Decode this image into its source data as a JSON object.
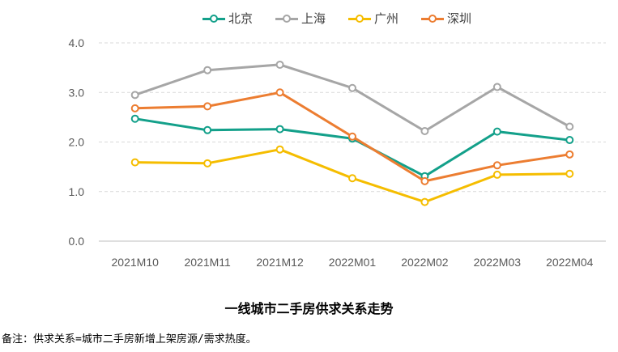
{
  "chart_data": {
    "type": "line",
    "title": "一线城市二手房供求关系走势",
    "categories": [
      "2021M10",
      "2021M11",
      "2021M12",
      "2022M01",
      "2022M02",
      "2022M03",
      "2022M04"
    ],
    "ylim": [
      0,
      4
    ],
    "yticks": [
      0,
      1,
      2,
      3,
      4
    ],
    "ytick_labels": [
      "0.0",
      "1.0",
      "2.0",
      "3.0",
      "4.0"
    ],
    "xlabel": "",
    "ylabel": "",
    "grid": true,
    "legend_position": "top-center",
    "series": [
      {
        "name": "北京",
        "color": "#13a08a",
        "values": [
          2.47,
          2.24,
          2.26,
          2.07,
          1.31,
          2.21,
          2.04
        ]
      },
      {
        "name": "上海",
        "color": "#a6a6a6",
        "values": [
          2.95,
          3.45,
          3.56,
          3.09,
          2.22,
          3.11,
          2.31
        ]
      },
      {
        "name": "广州",
        "color": "#f5bd00",
        "values": [
          1.59,
          1.57,
          1.85,
          1.27,
          0.79,
          1.34,
          1.36
        ]
      },
      {
        "name": "深圳",
        "color": "#ec7d31",
        "values": [
          2.68,
          2.72,
          3.0,
          2.11,
          1.21,
          1.53,
          1.75
        ]
      }
    ]
  },
  "footnote": "备注：供求关系=城市二手房新增上架房源/需求热度。"
}
